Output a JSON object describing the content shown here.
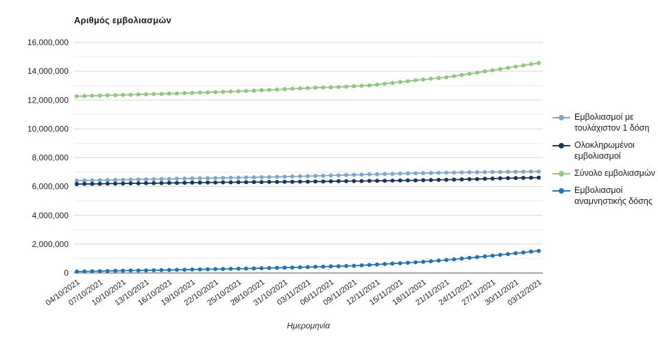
{
  "chart": {
    "title": "Αριθμός εμβολιασμών",
    "xlabel": "Ημερομηνία"
  },
  "chart_data": {
    "type": "line",
    "title": "Αριθμός εμβολιασμών",
    "xlabel": "Ημερομηνία",
    "ylabel": "",
    "ylim": [
      0,
      16000000
    ],
    "ytick_step": 2000000,
    "minor_grid_step": 1000000,
    "grid": true,
    "legend_position": "right",
    "x_tick_every": 3,
    "colors": {
      "grid_major": "#d6d6d6",
      "grid_minor": "#ebebeb",
      "axis_line": "#757575",
      "tick_text": "#1f1f1f"
    },
    "x": [
      "04/10/2021",
      "05/10/2021",
      "06/10/2021",
      "07/10/2021",
      "08/10/2021",
      "09/10/2021",
      "10/10/2021",
      "11/10/2021",
      "12/10/2021",
      "13/10/2021",
      "14/10/2021",
      "15/10/2021",
      "16/10/2021",
      "17/10/2021",
      "18/10/2021",
      "19/10/2021",
      "20/10/2021",
      "21/10/2021",
      "22/10/2021",
      "23/10/2021",
      "24/10/2021",
      "25/10/2021",
      "26/10/2021",
      "27/10/2021",
      "28/10/2021",
      "29/10/2021",
      "30/10/2021",
      "31/10/2021",
      "01/11/2021",
      "02/11/2021",
      "03/11/2021",
      "04/11/2021",
      "05/11/2021",
      "06/11/2021",
      "07/11/2021",
      "08/11/2021",
      "09/11/2021",
      "10/11/2021",
      "11/11/2021",
      "12/11/2021",
      "13/11/2021",
      "14/11/2021",
      "15/11/2021",
      "16/11/2021",
      "17/11/2021",
      "18/11/2021",
      "19/11/2021",
      "20/11/2021",
      "21/11/2021",
      "22/11/2021",
      "23/11/2021",
      "24/11/2021",
      "25/11/2021",
      "26/11/2021",
      "27/11/2021",
      "28/11/2021",
      "29/11/2021",
      "30/11/2021",
      "01/12/2021",
      "02/12/2021",
      "03/12/2021"
    ],
    "series": [
      {
        "name": "Εμβολιασμοί με τουλάχιστον 1 δόση",
        "color": "#7FA6D1",
        "values": [
          6410000,
          6420000,
          6430000,
          6440000,
          6450000,
          6460000,
          6470000,
          6480000,
          6490000,
          6500000,
          6510000,
          6520000,
          6530000,
          6540000,
          6550000,
          6560000,
          6570000,
          6580000,
          6590000,
          6600000,
          6610000,
          6620000,
          6630000,
          6640000,
          6650000,
          6660000,
          6670000,
          6680000,
          6700000,
          6710000,
          6720000,
          6740000,
          6750000,
          6770000,
          6780000,
          6800000,
          6810000,
          6820000,
          6840000,
          6850000,
          6870000,
          6880000,
          6900000,
          6910000,
          6920000,
          6930000,
          6940000,
          6950000,
          6960000,
          6970000,
          6980000,
          6990000,
          6990000,
          7000000,
          7010000,
          7010000,
          7020000,
          7020000,
          7030000,
          7030000,
          7040000
        ]
      },
      {
        "name": "Ολοκληρωμένοι εμβολιασμοί",
        "color": "#17375E",
        "values": [
          6170000,
          6180000,
          6180000,
          6190000,
          6200000,
          6200000,
          6210000,
          6220000,
          6220000,
          6230000,
          6230000,
          6240000,
          6250000,
          6250000,
          6260000,
          6270000,
          6270000,
          6280000,
          6280000,
          6290000,
          6290000,
          6300000,
          6300000,
          6310000,
          6310000,
          6320000,
          6320000,
          6330000,
          6330000,
          6340000,
          6340000,
          6350000,
          6350000,
          6360000,
          6370000,
          6370000,
          6380000,
          6380000,
          6390000,
          6400000,
          6400000,
          6410000,
          6420000,
          6430000,
          6430000,
          6440000,
          6450000,
          6460000,
          6470000,
          6480000,
          6490000,
          6510000,
          6520000,
          6540000,
          6550000,
          6570000,
          6580000,
          6590000,
          6600000,
          6610000,
          6620000
        ]
      },
      {
        "name": "Σύνολο εμβολιασμών",
        "color": "#8DC87E",
        "values": [
          12260000,
          12280000,
          12300000,
          12310000,
          12330000,
          12340000,
          12360000,
          12370000,
          12390000,
          12400000,
          12420000,
          12430000,
          12450000,
          12460000,
          12480000,
          12500000,
          12520000,
          12530000,
          12550000,
          12570000,
          12590000,
          12610000,
          12630000,
          12650000,
          12680000,
          12700000,
          12730000,
          12760000,
          12790000,
          12810000,
          12830000,
          12850000,
          12870000,
          12890000,
          12910000,
          12930000,
          12960000,
          12990000,
          13020000,
          13070000,
          13130000,
          13190000,
          13250000,
          13310000,
          13370000,
          13420000,
          13480000,
          13530000,
          13580000,
          13660000,
          13740000,
          13820000,
          13900000,
          13990000,
          14070000,
          14150000,
          14240000,
          14320000,
          14400000,
          14490000,
          14570000
        ]
      },
      {
        "name": "Εμβολιασμοί αναμνηστικής δόσης",
        "color": "#1F74B8",
        "values": [
          100000,
          110000,
          120000,
          130000,
          140000,
          150000,
          160000,
          170000,
          170000,
          180000,
          190000,
          200000,
          210000,
          220000,
          230000,
          240000,
          250000,
          260000,
          270000,
          280000,
          290000,
          300000,
          310000,
          320000,
          330000,
          340000,
          360000,
          370000,
          380000,
          400000,
          410000,
          430000,
          440000,
          460000,
          470000,
          490000,
          500000,
          530000,
          560000,
          590000,
          620000,
          650000,
          680000,
          710000,
          740000,
          780000,
          820000,
          860000,
          900000,
          950000,
          1000000,
          1050000,
          1100000,
          1150000,
          1200000,
          1260000,
          1310000,
          1370000,
          1420000,
          1480000,
          1530000
        ]
      }
    ]
  }
}
